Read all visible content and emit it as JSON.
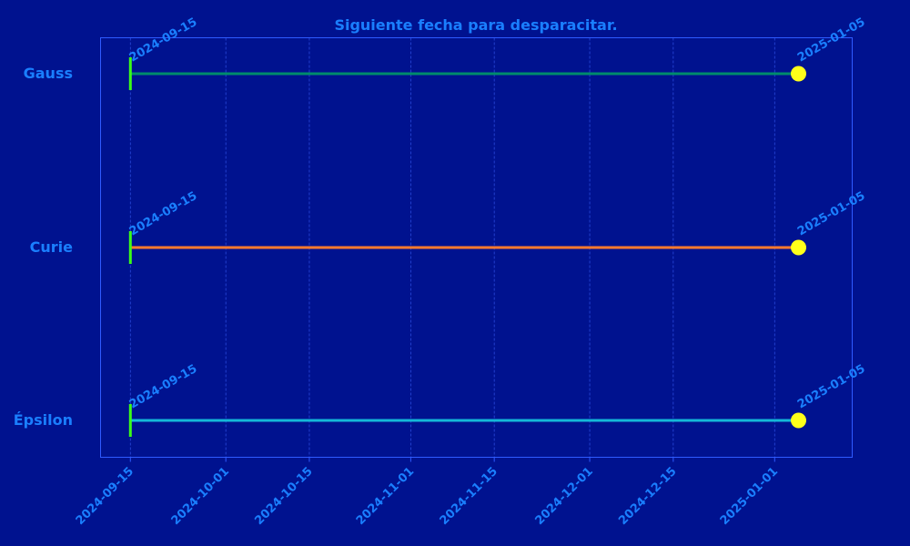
{
  "colors": {
    "background": "#00128f",
    "text": "#1a7fff",
    "plot_border": "#2f5bff",
    "grid": "#3d62ff",
    "start_marker": "#3cff17",
    "end_marker": "#ffff1a"
  },
  "chart_data": {
    "type": "timeline",
    "title": "Siguiente fecha para desparacitar.",
    "xlabel": "",
    "ylabel": "",
    "x_axis": {
      "type": "date",
      "range": [
        "2024-09-10",
        "2025-01-14"
      ],
      "ticks": [
        "2024-09-15",
        "2024-10-01",
        "2024-10-15",
        "2024-11-01",
        "2024-11-15",
        "2024-12-01",
        "2024-12-15",
        "2025-01-01"
      ]
    },
    "grid": true,
    "rows": [
      {
        "name": "Gauss",
        "start": "2024-09-15",
        "end": "2025-01-05",
        "color": "#008b6b"
      },
      {
        "name": "Curie",
        "start": "2024-09-15",
        "end": "2025-01-05",
        "color": "#ff7a2e"
      },
      {
        "name": "Épsilon",
        "start": "2024-09-15",
        "end": "2025-01-05",
        "color": "#14b8d8"
      }
    ]
  }
}
